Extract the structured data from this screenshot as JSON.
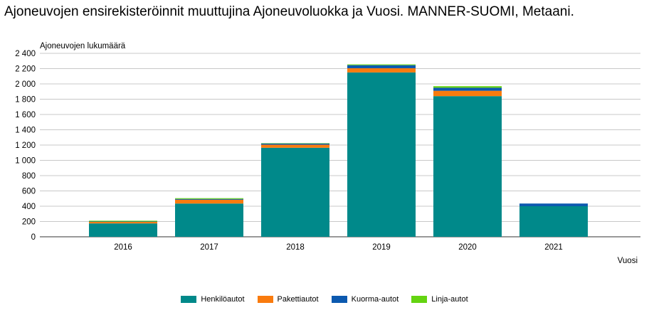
{
  "chart_data": {
    "type": "bar",
    "stacked": true,
    "title": "Ajoneuvojen ensirekisteröinnit muuttujina Ajoneuvoluokka ja Vuosi. MANNER-SUOMI, Metaani.",
    "ylabel": "Ajoneuvojen lukumäärä",
    "xlabel": "Vuosi",
    "ylim": [
      0,
      2400
    ],
    "yticks": [
      0,
      200,
      400,
      600,
      800,
      1000,
      1200,
      1400,
      1600,
      1800,
      2000,
      2200,
      2400
    ],
    "ytick_labels": [
      "0",
      "200",
      "400",
      "600",
      "800",
      "1 000",
      "1 200",
      "1 400",
      "1 600",
      "1 800",
      "2 000",
      "2 200",
      "2 400"
    ],
    "categories": [
      "2016",
      "2017",
      "2018",
      "2019",
      "2020",
      "2021"
    ],
    "grid": true,
    "legend": "bottom",
    "series": [
      {
        "name": "Henkilöautot",
        "color": "#00898a",
        "values": [
          175,
          435,
          1165,
          2150,
          1840,
          400
        ]
      },
      {
        "name": "Pakettiautot",
        "color": "#f97b0e",
        "values": [
          20,
          50,
          40,
          55,
          70,
          0
        ]
      },
      {
        "name": "Kuorma-autot",
        "color": "#0c59af",
        "values": [
          5,
          10,
          15,
          40,
          40,
          35
        ]
      },
      {
        "name": "Linja-autot",
        "color": "#64d411",
        "values": [
          10,
          10,
          5,
          10,
          20,
          0
        ]
      }
    ]
  }
}
